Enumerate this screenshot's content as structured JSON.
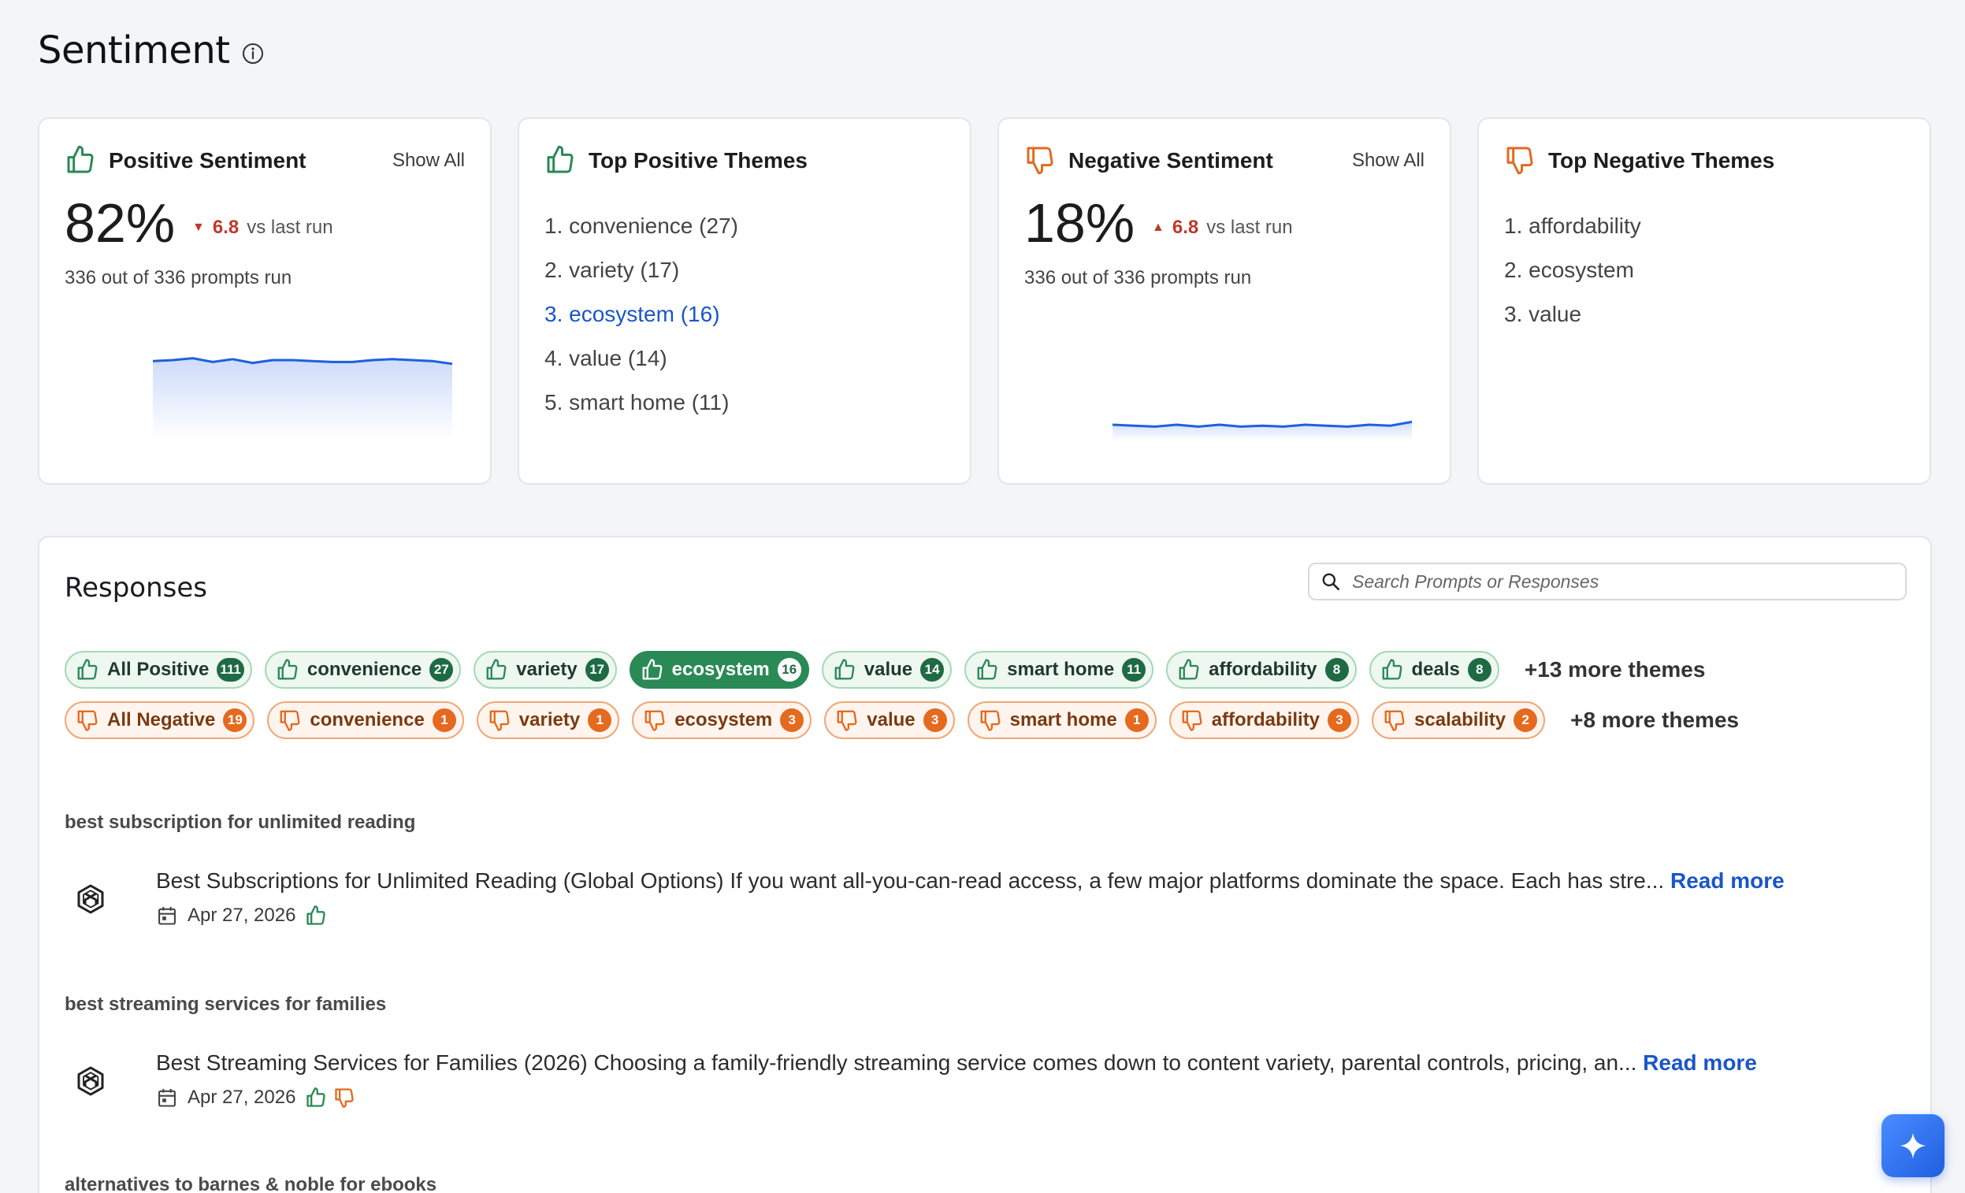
{
  "page": {
    "title": "Sentiment"
  },
  "positive_card": {
    "title": "Positive Sentiment",
    "show_all": "Show All",
    "percent": "82%",
    "delta": "6.8",
    "vs": "vs last run",
    "prompts_run": "336 out of 336 prompts run",
    "trend": [
      68,
      70,
      74,
      66,
      72,
      64,
      70,
      70,
      68,
      66,
      66,
      70,
      72,
      70,
      68,
      62
    ]
  },
  "top_positive": {
    "title": "Top Positive Themes",
    "items": [
      "1. convenience (27)",
      "2. variety (17)",
      "3. ecosystem (16)",
      "4. value (14)",
      "5. smart home (11)"
    ]
  },
  "negative_card": {
    "title": "Negative Sentiment",
    "show_all": "Show All",
    "percent": "18%",
    "delta": "6.8",
    "vs": "vs last run",
    "prompts_run": "336 out of 336 prompts run",
    "trend": [
      30,
      28,
      26,
      30,
      26,
      30,
      26,
      28,
      26,
      30,
      28,
      26,
      30,
      28,
      36
    ]
  },
  "top_negative": {
    "title": "Top Negative Themes",
    "items": [
      "1. affordability",
      "2. ecosystem",
      "3. value"
    ]
  },
  "responses": {
    "title": "Responses",
    "search_placeholder": "Search Prompts or Responses",
    "positive_chips": [
      {
        "label": "All Positive",
        "count": "111"
      },
      {
        "label": "convenience",
        "count": "27"
      },
      {
        "label": "variety",
        "count": "17"
      },
      {
        "label": "ecosystem",
        "count": "16",
        "active": true
      },
      {
        "label": "value",
        "count": "14"
      },
      {
        "label": "smart home",
        "count": "11"
      },
      {
        "label": "affordability",
        "count": "8"
      },
      {
        "label": "deals",
        "count": "8"
      }
    ],
    "positive_more": "+13 more themes",
    "negative_chips": [
      {
        "label": "All Negative",
        "count": "19"
      },
      {
        "label": "convenience",
        "count": "1"
      },
      {
        "label": "variety",
        "count": "1"
      },
      {
        "label": "ecosystem",
        "count": "3"
      },
      {
        "label": "value",
        "count": "3"
      },
      {
        "label": "smart home",
        "count": "1"
      },
      {
        "label": "affordability",
        "count": "3"
      },
      {
        "label": "scalability",
        "count": "2"
      }
    ],
    "negative_more": "+8 more themes",
    "items": [
      {
        "prompt": "best subscription for unlimited reading",
        "text": "Best Subscriptions for Unlimited Reading (Global Options) If you want all-you-can-read access, a few major platforms dominate the space. Each has stre...",
        "read_more": "Read more",
        "date": "Apr 27, 2026"
      },
      {
        "prompt": "best streaming services for families",
        "text": "Best Streaming Services for Families (2026) Choosing a family-friendly streaming service comes down to content variety, parental controls, pricing, an...",
        "read_more": "Read more",
        "date": "Apr 27, 2026"
      },
      {
        "prompt": "alternatives to barnes & noble for ebooks"
      }
    ]
  },
  "colors": {
    "positive": "#2a8a55",
    "negative": "#e46a1f",
    "link": "#1a56c9",
    "trend": "#1f5fe0"
  }
}
